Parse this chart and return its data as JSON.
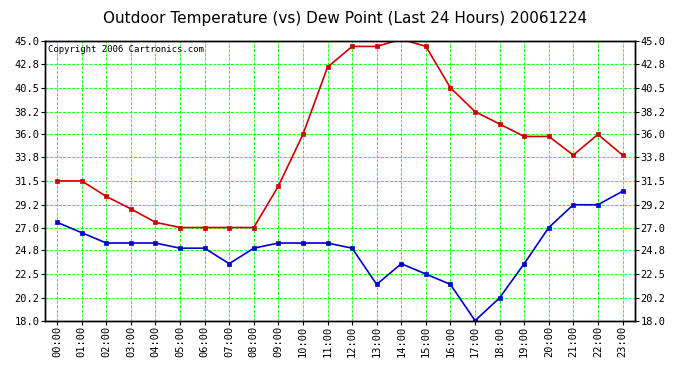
{
  "title": "Outdoor Temperature (vs) Dew Point (Last 24 Hours) 20061224",
  "copyright": "Copyright 2006 Cartronics.com",
  "background_color": "#ffffff",
  "plot_bg_color": "#ffffff",
  "grid_color": "#00ff00",
  "hours": [
    "00:00",
    "01:00",
    "02:00",
    "03:00",
    "04:00",
    "05:00",
    "06:00",
    "07:00",
    "08:00",
    "09:00",
    "10:00",
    "11:00",
    "12:00",
    "13:00",
    "14:00",
    "15:00",
    "16:00",
    "17:00",
    "18:00",
    "19:00",
    "20:00",
    "21:00",
    "22:00",
    "23:00"
  ],
  "temp_data": [
    31.5,
    31.5,
    30.0,
    28.8,
    27.5,
    27.0,
    27.0,
    27.0,
    27.0,
    31.0,
    36.0,
    42.5,
    44.5,
    44.5,
    45.2,
    44.5,
    40.5,
    38.2,
    37.0,
    35.8,
    35.8,
    34.0,
    36.0,
    34.0
  ],
  "dew_data": [
    27.5,
    26.5,
    25.5,
    25.5,
    25.5,
    25.0,
    25.0,
    23.5,
    25.0,
    25.5,
    25.5,
    25.5,
    25.0,
    21.5,
    23.5,
    22.5,
    21.5,
    18.0,
    20.2,
    23.5,
    27.0,
    29.2,
    29.2,
    30.5
  ],
  "temp_color": "#cc0000",
  "dew_color": "#0000cc",
  "marker": "s",
  "marker_size": 2.5,
  "ylim": [
    18.0,
    45.0
  ],
  "yticks": [
    18.0,
    20.2,
    22.5,
    24.8,
    27.0,
    29.2,
    31.5,
    33.8,
    36.0,
    38.2,
    40.5,
    42.8,
    45.0
  ],
  "title_fontsize": 11,
  "copyright_fontsize": 6.5,
  "tick_fontsize": 7.5,
  "border_color": "#000000"
}
